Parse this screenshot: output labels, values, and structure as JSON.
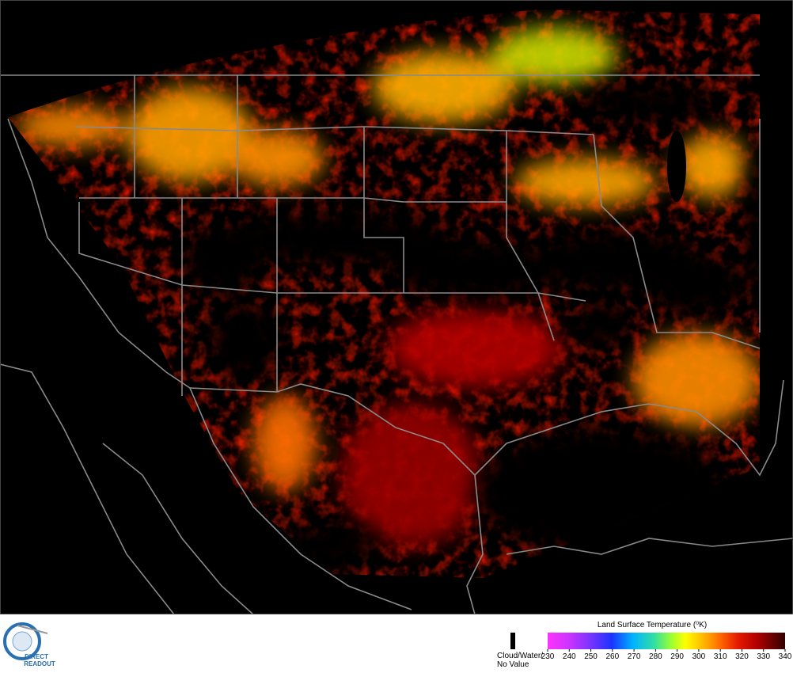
{
  "legend": {
    "title": "Land Surface Temperature (⁰K)",
    "range": [
      230,
      340
    ],
    "ticks": [
      230,
      240,
      250,
      260,
      270,
      280,
      290,
      300,
      310,
      320,
      330,
      340
    ],
    "no_value_label": [
      "Cloud/Water/",
      "No Value"
    ]
  },
  "logo": [
    "DIRECT",
    "READOUT"
  ]
}
